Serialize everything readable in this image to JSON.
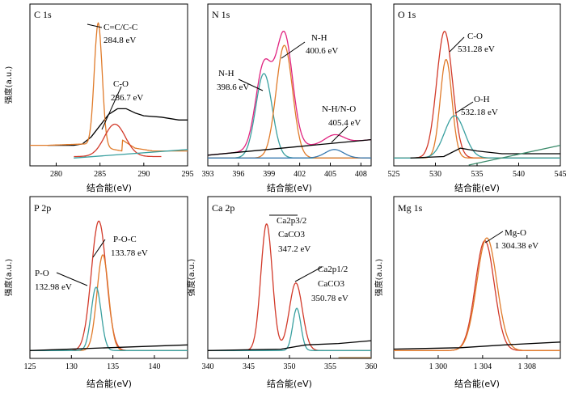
{
  "chart_data": [
    {
      "type": "line",
      "title": "C 1s",
      "xlabel": "结合能(eV)",
      "ylabel": "强度(a.u.)",
      "xlim": [
        277,
        295
      ],
      "ylim": [
        0,
        100
      ],
      "xticks": [
        "280",
        "285",
        "290",
        "295"
      ],
      "annotations": [
        {
          "lines": [
            "C=C/C-C",
            "284.8 eV"
          ],
          "x": 284.8
        },
        {
          "lines": [
            "C-O",
            "286.7 eV"
          ],
          "x": 286.7
        }
      ],
      "series": [
        {
          "color": "#000000",
          "baseline": [
            [
              279,
              10
            ],
            [
              282,
              10
            ],
            [
              283,
              11
            ],
            [
              284,
              16
            ],
            [
              285,
              24
            ],
            [
              286,
              32
            ],
            [
              287,
              36
            ],
            [
              288,
              36
            ],
            [
              289,
              33
            ],
            [
              290,
              31
            ],
            [
              292,
              30
            ],
            [
              294,
              28
            ],
            [
              295,
              28
            ]
          ]
        },
        {
          "color": "#e07b2a",
          "baseline": [
            [
              279,
              10
            ],
            [
              283.5,
              11
            ]
          ],
          "peaks": [
            {
              "c": 284.8,
              "h": 88,
              "w": 0.45,
              "base": "linear",
              "b0": [
                283,
                11
              ],
              "b1": [
                287.5,
                6
              ]
            }
          ],
          "tail": [
            [
              286.5,
              16
            ],
            [
              287.5,
              14
            ],
            [
              289,
              8
            ],
            [
              291,
              6
            ],
            [
              295,
              6
            ]
          ]
        },
        {
          "color": "#d23a2a",
          "peaks": [
            {
              "c": 286.7,
              "h": 23,
              "w": 1.2,
              "b0": [
                282,
                2
              ],
              "b1": [
                292,
                2
              ]
            }
          ]
        },
        {
          "color": "#3aa0a0",
          "line": [
            [
              282,
              1
            ],
            [
              295,
              7
            ]
          ]
        }
      ]
    },
    {
      "type": "line",
      "title": "N 1s",
      "xlabel": "结合能(eV)",
      "ylabel": "",
      "xlim": [
        393,
        409
      ],
      "ylim": [
        0,
        100
      ],
      "xticks": [
        "393",
        "396",
        "399",
        "402",
        "405",
        "408"
      ],
      "annotations": [
        {
          "lines": [
            "N-H",
            "398.6 eV"
          ],
          "x": 398.6
        },
        {
          "lines": [
            "N-H",
            "400.6 eV"
          ],
          "x": 400.6
        },
        {
          "lines": [
            "N-H/N-O",
            "405.4 eV"
          ],
          "x": 405.4
        }
      ],
      "series": [
        {
          "color": "#e0237f",
          "composite": true
        },
        {
          "color": "#3aa0a0",
          "peak": {
            "c": 398.5,
            "h": 60,
            "w": 0.8
          }
        },
        {
          "color": "#e07b2a",
          "peak": {
            "c": 400.5,
            "h": 80,
            "w": 0.8
          }
        },
        {
          "color": "#3a7ab0",
          "peak": {
            "c": 405.4,
            "h": 6,
            "w": 0.9
          }
        },
        {
          "color": "#000000",
          "line": [
            [
              393,
              3
            ],
            [
              409,
              14
            ]
          ]
        }
      ]
    },
    {
      "type": "line",
      "title": "O 1s",
      "xlabel": "结合能(eV)",
      "ylabel": "",
      "xlim": [
        525,
        545
      ],
      "ylim": [
        0,
        100
      ],
      "xticks": [
        "525",
        "530",
        "535",
        "540",
        "545"
      ],
      "annotations": [
        {
          "lines": [
            "C-O",
            "531.28 eV"
          ],
          "x": 531.28
        },
        {
          "lines": [
            "O-H",
            "532.18 eV"
          ],
          "x": 532.18
        }
      ],
      "series": [
        {
          "color": "#d23a2a",
          "peak": {
            "c": 531.1,
            "h": 90,
            "w": 0.95
          }
        },
        {
          "color": "#e07b2a",
          "peak": {
            "c": 531.28,
            "h": 70,
            "w": 0.7
          }
        },
        {
          "color": "#3aa0a0",
          "peak": {
            "c": 532.3,
            "h": 30,
            "w": 1.2
          }
        },
        {
          "color": "#000000",
          "line": [
            [
              527,
              1
            ],
            [
              531,
              2
            ],
            [
              533,
              8
            ],
            [
              535,
              6
            ],
            [
              538,
              4
            ],
            [
              545,
              4
            ]
          ]
        },
        {
          "color": "#3a8a6a",
          "line": [
            [
              534,
              -10
            ],
            [
              545,
              10
            ]
          ]
        }
      ]
    },
    {
      "type": "line",
      "title": "P 2p",
      "xlabel": "结合能(eV)",
      "ylabel": "强度(a.u.)",
      "xlim": [
        125,
        144
      ],
      "ylim": [
        0,
        100
      ],
      "xticks": [
        "125",
        "130",
        "135",
        "140"
      ],
      "annotations": [
        {
          "lines": [
            "P-O-C",
            "133.78 eV"
          ],
          "x": 133.78
        },
        {
          "lines": [
            "P-O",
            "132.98 eV"
          ],
          "x": 132.98
        }
      ],
      "series": [
        {
          "color": "#d23a2a",
          "peak": {
            "c": 133.3,
            "h": 92,
            "w": 0.9
          }
        },
        {
          "color": "#e07b2a",
          "peak": {
            "c": 133.78,
            "h": 68,
            "w": 0.7
          }
        },
        {
          "color": "#3aa0a0",
          "peak": {
            "c": 132.98,
            "h": 45,
            "w": 0.6
          }
        },
        {
          "color": "#000000",
          "line": [
            [
              125,
              1
            ],
            [
              144,
              5
            ]
          ]
        }
      ]
    },
    {
      "type": "line",
      "title": "Ca 2p",
      "xlabel": "结合能(eV)",
      "ylabel": "强度(a.u.)",
      "xlim": [
        340,
        360
      ],
      "ylim": [
        0,
        100
      ],
      "xticks": [
        "340",
        "345",
        "350",
        "355",
        "360"
      ],
      "annotations": [
        {
          "lines": [
            "Ca2p3/2",
            "CaCO3",
            "347.2 eV"
          ],
          "x": 347.2
        },
        {
          "lines": [
            "Ca2p1/2",
            "CaCO3",
            "350.78 eV"
          ],
          "x": 350.78
        }
      ],
      "series": [
        {
          "color": "#d23a2a",
          "peak": {
            "c": 347.2,
            "h": 90,
            "w": 0.7
          },
          "peak2": {
            "c": 350.78,
            "h": 48,
            "w": 0.8
          }
        },
        {
          "color": "#3aa0a0",
          "peak": {
            "c": 350.9,
            "h": 30,
            "w": 0.5
          }
        },
        {
          "color": "#000000",
          "line": [
            [
              340,
              1
            ],
            [
              349,
              2
            ],
            [
              352,
              5
            ],
            [
              356,
              6
            ],
            [
              360,
              8
            ]
          ]
        },
        {
          "color": "#a07a4a",
          "line": [
            [
              356,
              -10
            ],
            [
              360,
              -4
            ]
          ]
        }
      ]
    },
    {
      "type": "line",
      "title": "Mg 1s",
      "xlabel": "结合能(eV)",
      "ylabel": "强度(a.u.)",
      "xlim": [
        1296,
        1311
      ],
      "ylim": [
        0,
        100
      ],
      "xticks": [
        "1 300",
        "1 304",
        "1 308"
      ],
      "tickvals": [
        1300,
        1304,
        1308
      ],
      "annotations": [
        {
          "lines": [
            "Mg-O",
            "1 304.38 eV"
          ],
          "x": 1304.38
        }
      ],
      "series": [
        {
          "color": "#d23a2a",
          "peak": {
            "c": 1304.2,
            "h": 78,
            "w": 0.85
          }
        },
        {
          "color": "#e07b2a",
          "peak": {
            "c": 1304.38,
            "h": 80,
            "w": 0.9
          }
        },
        {
          "color": "#000000",
          "line": [
            [
              1296,
              2
            ],
            [
              1302,
              3
            ],
            [
              1306,
              5
            ],
            [
              1311,
              7
            ]
          ]
        }
      ]
    }
  ]
}
